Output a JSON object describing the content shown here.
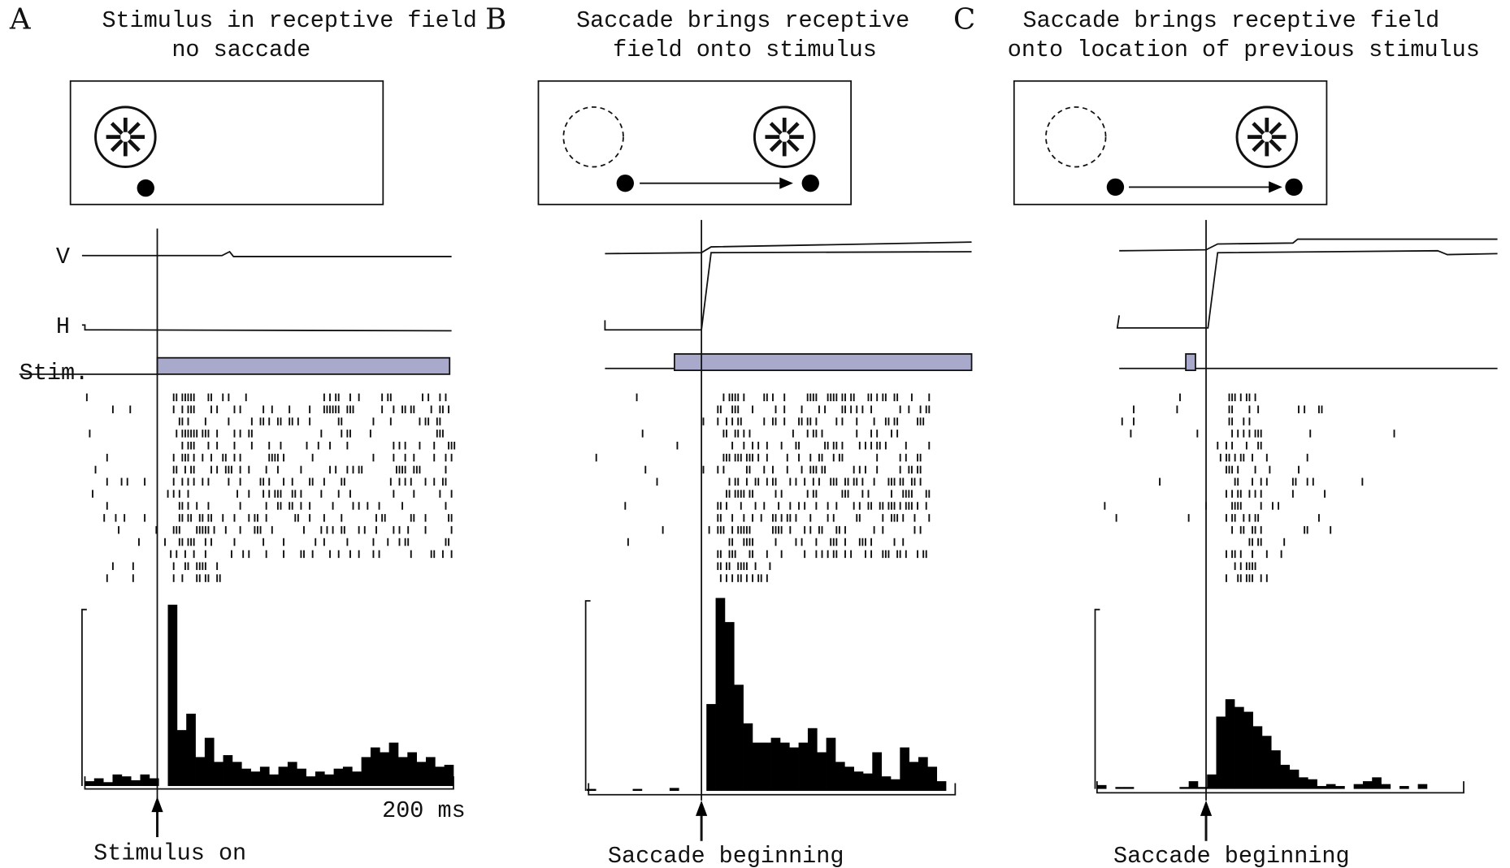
{
  "panels": [
    {
      "letter": "A",
      "title": [
        "Stimulus in receptive field",
        "no saccade"
      ],
      "trace_labels": [
        "V",
        "H",
        "Stim."
      ],
      "scale_label": "200 ms",
      "event_label": "Stimulus on",
      "histogram": [
        5,
        8,
        4,
        12,
        10,
        6,
        12,
        8,
        0,
        188,
        58,
        75,
        30,
        50,
        25,
        32,
        25,
        18,
        15,
        20,
        12,
        20,
        25,
        18,
        10,
        15,
        12,
        18,
        20,
        15,
        30,
        40,
        35,
        45,
        30,
        35,
        25,
        30,
        20,
        22
      ]
    },
    {
      "letter": "B",
      "title": [
        "Saccade brings receptive",
        "field onto stimulus"
      ],
      "event_label": "Saccade beginning",
      "histogram": [
        2,
        0,
        0,
        0,
        0,
        2,
        0,
        0,
        0,
        3,
        0,
        0,
        0,
        90,
        200,
        175,
        110,
        70,
        50,
        50,
        55,
        50,
        45,
        50,
        65,
        40,
        55,
        30,
        25,
        20,
        18,
        40,
        15,
        12,
        45,
        30,
        35,
        25,
        10,
        0
      ]
    },
    {
      "letter": "C",
      "title": [
        "Saccade brings receptive field",
        "onto location of previous stimulus"
      ],
      "event_label": "Saccade beginning",
      "histogram": [
        4,
        0,
        2,
        2,
        0,
        0,
        0,
        0,
        0,
        2,
        8,
        2,
        15,
        75,
        93,
        85,
        80,
        65,
        55,
        40,
        25,
        20,
        12,
        10,
        3,
        5,
        3,
        0,
        5,
        8,
        12,
        5,
        0,
        3,
        0,
        5,
        0,
        0,
        0,
        0
      ]
    }
  ]
}
